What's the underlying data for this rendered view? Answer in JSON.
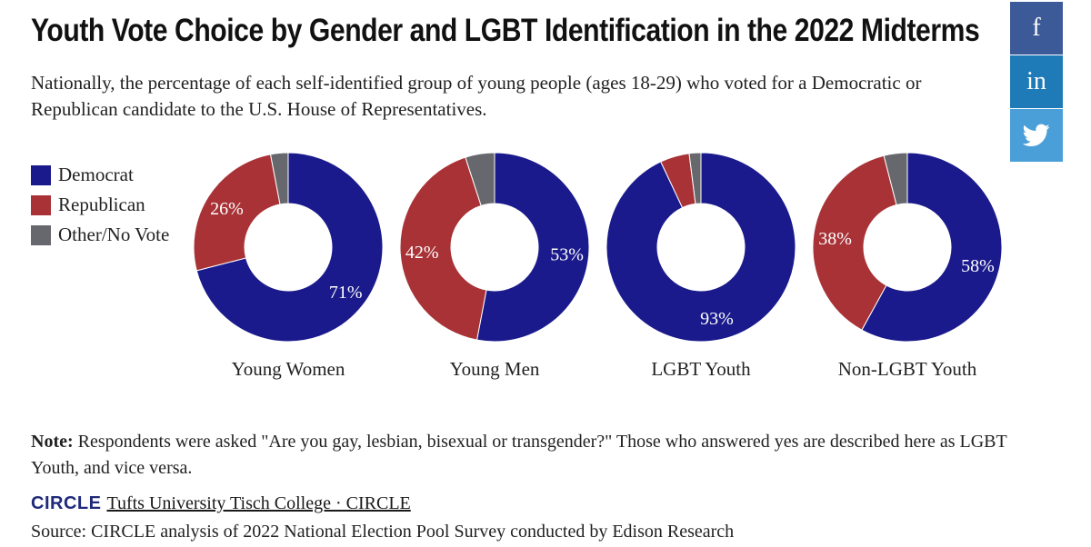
{
  "header": {
    "title": "Youth Vote Choice by Gender and LGBT Identification in the 2022 Midterms",
    "subtitle": "Nationally, the percentage of each self-identified group of young people (ages 18-29) who voted for a Democratic or Republican candidate to the U.S. House of Representatives."
  },
  "share": {
    "facebook": "f",
    "linkedin": "in",
    "twitter_icon": "twitter-bird-icon"
  },
  "legend": [
    {
      "label": "Democrat",
      "color": "#1a1a8c"
    },
    {
      "label": "Republican",
      "color": "#a83236"
    },
    {
      "label": "Other/No Vote",
      "color": "#66686d"
    }
  ],
  "chart_data": {
    "type": "pie",
    "donut": true,
    "series_names": [
      "Democrat",
      "Republican",
      "Other/No Vote"
    ],
    "charts": [
      {
        "category": "Young Women",
        "values": [
          71,
          26,
          3
        ],
        "labels": [
          "71%",
          "26%",
          ""
        ]
      },
      {
        "category": "Young Men",
        "values": [
          53,
          42,
          5
        ],
        "labels": [
          "53%",
          "42%",
          ""
        ]
      },
      {
        "category": "LGBT Youth",
        "values": [
          93,
          5,
          2
        ],
        "labels": [
          "93%",
          "",
          ""
        ]
      },
      {
        "category": "Non-LGBT Youth",
        "values": [
          58,
          38,
          4
        ],
        "labels": [
          "58%",
          "38%",
          ""
        ]
      }
    ]
  },
  "note": {
    "label": "Note:",
    "text": " Respondents were asked \"Are you gay, lesbian, bisexual or transgender?\" Those who answered yes are described here as LGBT Youth, and vice versa."
  },
  "credit": {
    "logo": "CIRCLE",
    "link": "Tufts University Tisch College · CIRCLE"
  },
  "source": "Source: CIRCLE analysis of 2022 National Election Pool Survey conducted by Edison Research"
}
